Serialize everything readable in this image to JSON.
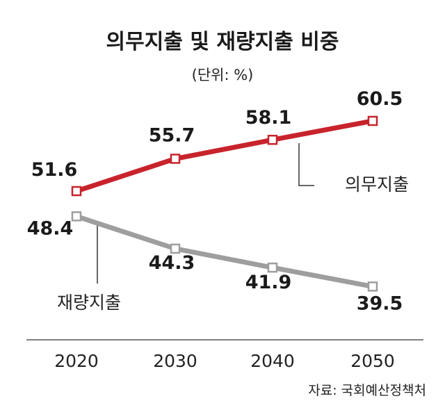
{
  "chart_data": {
    "type": "line",
    "title": "의무지출 및 재량지출 비중",
    "unit": "(단위: %)",
    "source": "자료: 국회예산정책처",
    "categories": [
      "2020",
      "2030",
      "2040",
      "2050"
    ],
    "series": [
      {
        "name": "의무지출",
        "values": [
          51.6,
          55.7,
          58.1,
          60.5
        ],
        "color": "#c8232c"
      },
      {
        "name": "재량지출",
        "values": [
          48.4,
          44.3,
          41.9,
          39.5
        ],
        "color": "#9e9e9e"
      }
    ],
    "value_labels": [
      [
        "51.6",
        "55.7",
        "58.1",
        "60.5"
      ],
      [
        "48.4",
        "44.3",
        "41.9",
        "39.5"
      ]
    ],
    "grid": false,
    "legend": "inline"
  }
}
